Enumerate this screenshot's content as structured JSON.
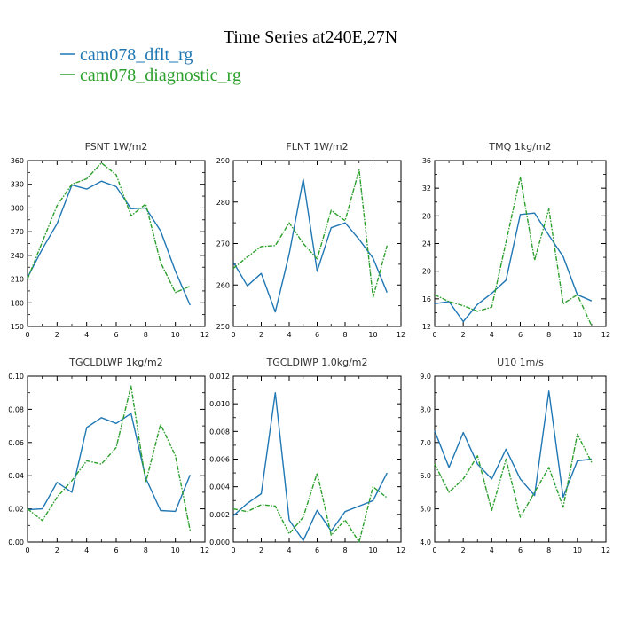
{
  "figure": {
    "title": "Time Series at240E,27N",
    "legend": [
      {
        "label": "cam078_dflt_rg",
        "color": "#1f77b4"
      },
      {
        "label": "cam078_diagnostic_rg",
        "color": "#2ca02c"
      }
    ]
  },
  "chart_data": [
    {
      "type": "line",
      "title": "FSNT  1W/m2",
      "x": [
        0,
        1,
        2,
        3,
        4,
        5,
        6,
        7,
        8,
        9,
        10,
        11
      ],
      "xlim": [
        0,
        12
      ],
      "xticks": [
        "0",
        "2",
        "4",
        "6",
        "8",
        "10",
        "12"
      ],
      "ylim": [
        150,
        360
      ],
      "yticks": [
        "150",
        "180",
        "210",
        "240",
        "270",
        "300",
        "330",
        "360"
      ],
      "series": [
        {
          "name": "cam078_dflt_rg",
          "color": "#1f77b4",
          "dash": "solid",
          "values": [
            212,
            248,
            280,
            329,
            324,
            334,
            327,
            299,
            300,
            271,
            220,
            177
          ]
        },
        {
          "name": "cam078_diagnostic_rg",
          "color": "#2ca02c",
          "dash": "dashed",
          "values": [
            210,
            257,
            303,
            330,
            337,
            357,
            342,
            290,
            305,
            231,
            193,
            201
          ]
        }
      ]
    },
    {
      "type": "line",
      "title": "FLNT  1W/m2",
      "x": [
        0,
        1,
        2,
        3,
        4,
        5,
        6,
        7,
        8,
        9,
        10,
        11
      ],
      "xlim": [
        0,
        12
      ],
      "xticks": [
        "0",
        "2",
        "4",
        "6",
        "8",
        "10",
        "12"
      ],
      "ylim": [
        250,
        290
      ],
      "yticks": [
        "250",
        "260",
        "270",
        "280",
        "290"
      ],
      "series": [
        {
          "name": "cam078_dflt_rg",
          "color": "#1f77b4",
          "dash": "solid",
          "values": [
            265.5,
            259.8,
            262.8,
            253.5,
            267.5,
            285.5,
            263.3,
            273.8,
            275.0,
            271.0,
            266.5,
            258.2
          ]
        },
        {
          "name": "cam078_diagnostic_rg",
          "color": "#2ca02c",
          "dash": "dashed",
          "values": [
            264.0,
            266.8,
            269.3,
            269.5,
            275.0,
            270.0,
            266.3,
            278.0,
            275.5,
            287.8,
            257.0,
            269.5
          ]
        }
      ]
    },
    {
      "type": "line",
      "title": "TMQ  1kg/m2",
      "x": [
        0,
        1,
        2,
        3,
        4,
        5,
        6,
        7,
        8,
        9,
        10,
        11
      ],
      "xlim": [
        0,
        12
      ],
      "xticks": [
        "0",
        "2",
        "4",
        "6",
        "8",
        "10",
        "12"
      ],
      "ylim": [
        12,
        36
      ],
      "yticks": [
        "12",
        "16",
        "20",
        "24",
        "28",
        "32",
        "36"
      ],
      "series": [
        {
          "name": "cam078_dflt_rg",
          "color": "#1f77b4",
          "dash": "solid",
          "values": [
            15.3,
            15.6,
            12.7,
            15.2,
            16.8,
            18.7,
            28.2,
            28.4,
            25.2,
            22.1,
            16.6,
            15.7
          ]
        },
        {
          "name": "cam078_diagnostic_rg",
          "color": "#2ca02c",
          "dash": "dashed",
          "values": [
            16.6,
            15.6,
            15.0,
            14.2,
            14.8,
            24.2,
            33.6,
            21.6,
            29.0,
            15.3,
            16.6,
            12.1
          ]
        }
      ]
    },
    {
      "type": "line",
      "title": "TGCLDLWP  1kg/m2",
      "x": [
        0,
        1,
        2,
        3,
        4,
        5,
        6,
        7,
        8,
        9,
        10,
        11
      ],
      "xlim": [
        0,
        12
      ],
      "xticks": [
        "0",
        "2",
        "4",
        "6",
        "8",
        "10",
        "12"
      ],
      "ylim": [
        0.0,
        0.1
      ],
      "yticks": [
        "0.00",
        "0.02",
        "0.04",
        "0.06",
        "0.08",
        "0.10"
      ],
      "series": [
        {
          "name": "cam078_dflt_rg",
          "color": "#1f77b4",
          "dash": "solid",
          "values": [
            0.0195,
            0.02,
            0.036,
            0.03,
            0.069,
            0.075,
            0.0715,
            0.0775,
            0.0385,
            0.019,
            0.0185,
            0.0405
          ]
        },
        {
          "name": "cam078_diagnostic_rg",
          "color": "#2ca02c",
          "dash": "dashed",
          "values": [
            0.02,
            0.013,
            0.027,
            0.037,
            0.049,
            0.047,
            0.057,
            0.094,
            0.036,
            0.071,
            0.052,
            0.007
          ]
        }
      ]
    },
    {
      "type": "line",
      "title": "TGCLDIWP  1.0kg/m2",
      "x": [
        0,
        1,
        2,
        3,
        4,
        5,
        6,
        7,
        8,
        9,
        10,
        11
      ],
      "xlim": [
        0,
        12
      ],
      "xticks": [
        "0",
        "2",
        "4",
        "6",
        "8",
        "10",
        "12"
      ],
      "ylim": [
        0.0,
        0.012
      ],
      "yticks": [
        "0.000",
        "0.002",
        "0.004",
        "0.006",
        "0.008",
        "0.010",
        "0.012"
      ],
      "series": [
        {
          "name": "cam078_dflt_rg",
          "color": "#1f77b4",
          "dash": "solid",
          "values": [
            0.0019,
            0.0028,
            0.0035,
            0.0108,
            0.0016,
            0.0001,
            0.0023,
            0.0008,
            0.0022,
            0.0026,
            0.003,
            0.005
          ]
        },
        {
          "name": "cam078_diagnostic_rg",
          "color": "#2ca02c",
          "dash": "dashed",
          "values": [
            0.0024,
            0.0022,
            0.0027,
            0.0026,
            0.0006,
            0.0018,
            0.005,
            0.0005,
            0.0016,
            0.0,
            0.004,
            0.0032
          ]
        }
      ]
    },
    {
      "type": "line",
      "title": "U10  1m/s",
      "x": [
        0,
        1,
        2,
        3,
        4,
        5,
        6,
        7,
        8,
        9,
        10,
        11
      ],
      "xlim": [
        0,
        12
      ],
      "xticks": [
        "0",
        "2",
        "4",
        "6",
        "8",
        "10",
        "12"
      ],
      "ylim": [
        4.0,
        9.0
      ],
      "yticks": [
        "4.0",
        "5.0",
        "6.0",
        "7.0",
        "8.0",
        "9.0"
      ],
      "series": [
        {
          "name": "cam078_dflt_rg",
          "color": "#1f77b4",
          "dash": "solid",
          "values": [
            7.35,
            6.25,
            7.3,
            6.35,
            5.9,
            6.8,
            5.9,
            5.4,
            8.55,
            5.35,
            6.45,
            6.5
          ]
        },
        {
          "name": "cam078_diagnostic_rg",
          "color": "#2ca02c",
          "dash": "dashed",
          "values": [
            6.35,
            5.5,
            5.9,
            6.6,
            4.95,
            6.5,
            4.75,
            5.5,
            6.25,
            5.05,
            7.25,
            6.4
          ]
        }
      ]
    }
  ]
}
